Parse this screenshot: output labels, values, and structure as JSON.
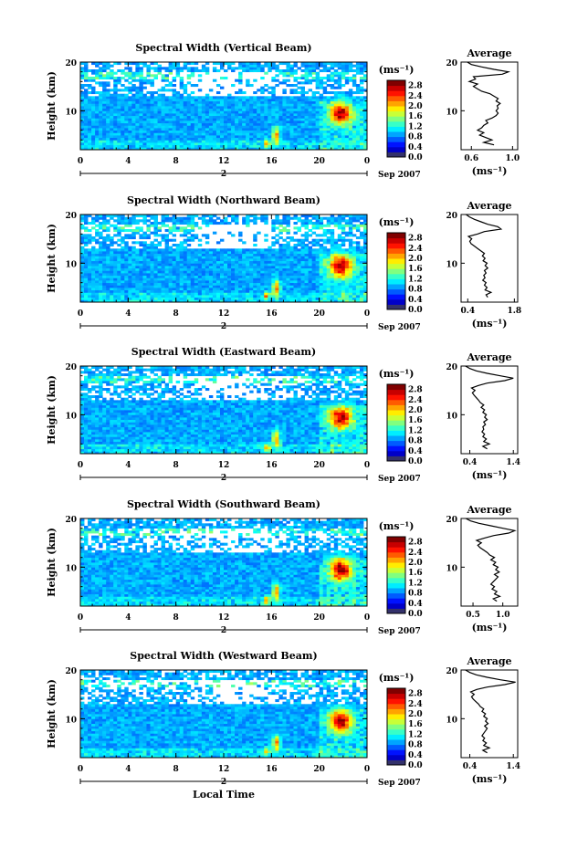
{
  "chart_data": [
    {
      "type": "heatmap",
      "title": "Spectral Width (Vertical Beam)",
      "ylabel": "Height (km)",
      "xlabel": "",
      "x_ticks": [
        "0",
        "4",
        "8",
        "12",
        "16",
        "20",
        "0"
      ],
      "y_ticks": [
        "10",
        "20"
      ],
      "xlim": [
        0,
        24
      ],
      "ylim": [
        2,
        20
      ],
      "day_marker": "2",
      "date_label": "Sep 2007",
      "colorbar": {
        "unit": "(ms⁻¹)",
        "ticks": [
          "2.8",
          "2.4",
          "2.0",
          "1.6",
          "1.2",
          "0.8",
          "0.4",
          "0.0"
        ],
        "range": [
          0,
          3
        ]
      },
      "profile": {
        "title": "Average",
        "xlabel": "(ms⁻¹)",
        "x_ticks": [
          "0.6",
          "1.0"
        ],
        "xlim": [
          0.5,
          1.05
        ],
        "y_ticks": [
          "10",
          "20"
        ],
        "points": [
          [
            0.82,
            3
          ],
          [
            0.72,
            3.5
          ],
          [
            0.8,
            4
          ],
          [
            0.74,
            4.5
          ],
          [
            0.68,
            5
          ],
          [
            0.72,
            5.5
          ],
          [
            0.66,
            6
          ],
          [
            0.7,
            6.5
          ],
          [
            0.72,
            7
          ],
          [
            0.76,
            7.5
          ],
          [
            0.74,
            8
          ],
          [
            0.8,
            8.5
          ],
          [
            0.84,
            9
          ],
          [
            0.86,
            9.5
          ],
          [
            0.84,
            10
          ],
          [
            0.86,
            10.5
          ],
          [
            0.85,
            11
          ],
          [
            0.88,
            11.5
          ],
          [
            0.84,
            12
          ],
          [
            0.86,
            12.5
          ],
          [
            0.82,
            13
          ],
          [
            0.78,
            13.5
          ],
          [
            0.7,
            14
          ],
          [
            0.66,
            14.5
          ],
          [
            0.62,
            15
          ],
          [
            0.66,
            15.5
          ],
          [
            0.58,
            16
          ],
          [
            0.64,
            16.5
          ],
          [
            0.62,
            17
          ],
          [
            0.9,
            17.5
          ],
          [
            0.96,
            18
          ],
          [
            0.82,
            18.5
          ],
          [
            0.7,
            19
          ],
          [
            0.6,
            19.5
          ],
          [
            0.56,
            20
          ]
        ]
      }
    },
    {
      "type": "heatmap",
      "title": "Spectral Width (Northward Beam)",
      "ylabel": "Height (km)",
      "xlabel": "",
      "x_ticks": [
        "0",
        "4",
        "8",
        "12",
        "16",
        "20",
        "0"
      ],
      "y_ticks": [
        "10",
        "20"
      ],
      "xlim": [
        0,
        24
      ],
      "ylim": [
        2,
        20
      ],
      "day_marker": "2",
      "date_label": "Sep 2007",
      "colorbar": {
        "unit": "(ms⁻¹)",
        "ticks": [
          "2.8",
          "2.4",
          "2.0",
          "1.6",
          "1.2",
          "0.8",
          "0.4",
          "0.0"
        ],
        "range": [
          0,
          3
        ]
      },
      "profile": {
        "title": "Average",
        "xlabel": "(ms⁻¹)",
        "x_ticks": [
          "0.4",
          "1.8"
        ],
        "xlim": [
          0.2,
          1.9
        ],
        "y_ticks": [
          "10",
          "20"
        ],
        "points": [
          [
            1.0,
            3
          ],
          [
            0.95,
            3.5
          ],
          [
            1.1,
            4
          ],
          [
            0.92,
            4.5
          ],
          [
            0.98,
            5
          ],
          [
            0.9,
            5.5
          ],
          [
            0.95,
            6
          ],
          [
            0.85,
            6.5
          ],
          [
            0.92,
            7
          ],
          [
            0.88,
            7.5
          ],
          [
            0.95,
            8
          ],
          [
            0.9,
            8.5
          ],
          [
            1.0,
            9
          ],
          [
            0.92,
            9.5
          ],
          [
            0.98,
            10
          ],
          [
            0.86,
            10.5
          ],
          [
            0.92,
            11
          ],
          [
            0.84,
            11.5
          ],
          [
            0.9,
            12
          ],
          [
            0.8,
            12.5
          ],
          [
            0.7,
            13
          ],
          [
            0.6,
            13.5
          ],
          [
            0.5,
            14
          ],
          [
            0.46,
            14.5
          ],
          [
            0.52,
            15
          ],
          [
            0.42,
            15.5
          ],
          [
            0.7,
            16
          ],
          [
            0.9,
            16.5
          ],
          [
            1.4,
            17
          ],
          [
            1.3,
            17.5
          ],
          [
            1.0,
            18
          ],
          [
            0.8,
            18.5
          ],
          [
            0.6,
            19
          ],
          [
            0.45,
            19.5
          ],
          [
            0.35,
            20
          ]
        ]
      }
    },
    {
      "type": "heatmap",
      "title": "Spectral Width (Eastward Beam)",
      "ylabel": "Height (km)",
      "xlabel": "",
      "x_ticks": [
        "0",
        "4",
        "8",
        "12",
        "16",
        "20",
        "0"
      ],
      "y_ticks": [
        "10",
        "20"
      ],
      "xlim": [
        0,
        24
      ],
      "ylim": [
        2,
        20
      ],
      "day_marker": "2",
      "date_label": "Sep 2007",
      "colorbar": {
        "unit": "(ms⁻¹)",
        "ticks": [
          "2.8",
          "2.4",
          "2.0",
          "1.6",
          "1.2",
          "0.8",
          "0.4",
          "0.0"
        ],
        "range": [
          0,
          3
        ]
      },
      "profile": {
        "title": "Average",
        "xlabel": "(ms⁻¹)",
        "x_ticks": [
          "0.4",
          "1.4"
        ],
        "xlim": [
          0.2,
          1.5
        ],
        "y_ticks": [
          "10",
          "20"
        ],
        "points": [
          [
            0.8,
            3
          ],
          [
            0.7,
            3.5
          ],
          [
            0.85,
            4
          ],
          [
            0.72,
            4.5
          ],
          [
            0.78,
            5
          ],
          [
            0.7,
            5.5
          ],
          [
            0.74,
            6
          ],
          [
            0.68,
            6.5
          ],
          [
            0.72,
            7
          ],
          [
            0.7,
            7.5
          ],
          [
            0.76,
            8
          ],
          [
            0.72,
            8.5
          ],
          [
            0.8,
            9
          ],
          [
            0.74,
            9.5
          ],
          [
            0.78,
            10
          ],
          [
            0.7,
            10.5
          ],
          [
            0.74,
            11
          ],
          [
            0.66,
            11.5
          ],
          [
            0.72,
            12
          ],
          [
            0.64,
            12.5
          ],
          [
            0.6,
            13
          ],
          [
            0.55,
            13.5
          ],
          [
            0.5,
            14
          ],
          [
            0.46,
            14.5
          ],
          [
            0.52,
            15
          ],
          [
            0.44,
            15.5
          ],
          [
            0.6,
            16
          ],
          [
            0.8,
            16.5
          ],
          [
            1.2,
            17
          ],
          [
            1.4,
            17.5
          ],
          [
            1.1,
            18
          ],
          [
            0.8,
            18.5
          ],
          [
            0.55,
            19
          ],
          [
            0.4,
            19.5
          ],
          [
            0.3,
            20
          ]
        ]
      }
    },
    {
      "type": "heatmap",
      "title": "Spectral Width (Southward Beam)",
      "ylabel": "Height (km)",
      "xlabel": "",
      "x_ticks": [
        "0",
        "4",
        "8",
        "12",
        "16",
        "20",
        "0"
      ],
      "y_ticks": [
        "10",
        "20"
      ],
      "xlim": [
        0,
        24
      ],
      "ylim": [
        2,
        20
      ],
      "day_marker": "2",
      "date_label": "Sep 2007",
      "colorbar": {
        "unit": "(ms⁻¹)",
        "ticks": [
          "2.8",
          "2.4",
          "2.0",
          "1.6",
          "1.2",
          "0.8",
          "0.4",
          "0.0"
        ],
        "range": [
          0,
          3
        ]
      },
      "profile": {
        "title": "Average",
        "xlabel": "(ms⁻¹)",
        "x_ticks": [
          "0.5",
          "1.0"
        ],
        "xlim": [
          0.3,
          1.25
        ],
        "y_ticks": [
          "10",
          "20"
        ],
        "points": [
          [
            0.9,
            3
          ],
          [
            0.84,
            3.5
          ],
          [
            0.95,
            4
          ],
          [
            0.86,
            4.5
          ],
          [
            0.9,
            5
          ],
          [
            0.82,
            5.5
          ],
          [
            0.86,
            6
          ],
          [
            0.8,
            6.5
          ],
          [
            0.84,
            7
          ],
          [
            0.88,
            7.5
          ],
          [
            0.92,
            8
          ],
          [
            0.86,
            8.5
          ],
          [
            0.94,
            9
          ],
          [
            0.88,
            9.5
          ],
          [
            0.92,
            10
          ],
          [
            0.84,
            10.5
          ],
          [
            0.88,
            11
          ],
          [
            0.8,
            11.5
          ],
          [
            0.86,
            12
          ],
          [
            0.78,
            12.5
          ],
          [
            0.74,
            13
          ],
          [
            0.68,
            13.5
          ],
          [
            0.62,
            14
          ],
          [
            0.58,
            14.5
          ],
          [
            0.64,
            15
          ],
          [
            0.56,
            15.5
          ],
          [
            0.7,
            16
          ],
          [
            0.85,
            16.5
          ],
          [
            1.1,
            17
          ],
          [
            1.2,
            17.5
          ],
          [
            1.0,
            18
          ],
          [
            0.8,
            18.5
          ],
          [
            0.6,
            19
          ],
          [
            0.46,
            19.5
          ],
          [
            0.38,
            20
          ]
        ]
      }
    },
    {
      "type": "heatmap",
      "title": "Spectral Width (Westward Beam)",
      "ylabel": "Height (km)",
      "xlabel": "Local Time",
      "x_ticks": [
        "0",
        "4",
        "8",
        "12",
        "16",
        "20",
        "0"
      ],
      "y_ticks": [
        "10",
        "20"
      ],
      "xlim": [
        0,
        24
      ],
      "ylim": [
        2,
        20
      ],
      "day_marker": "2",
      "date_label": "Sep 2007",
      "colorbar": {
        "unit": "(ms⁻¹)",
        "ticks": [
          "2.8",
          "2.4",
          "2.0",
          "1.6",
          "1.2",
          "0.8",
          "0.4",
          "0.0"
        ],
        "range": [
          0,
          3
        ]
      },
      "profile": {
        "title": "Average",
        "xlabel": "(ms⁻¹)",
        "x_ticks": [
          "0.4",
          "1.4"
        ],
        "xlim": [
          0.2,
          1.5
        ],
        "y_ticks": [
          "10",
          "20"
        ],
        "points": [
          [
            0.8,
            3
          ],
          [
            0.7,
            3.5
          ],
          [
            0.85,
            4
          ],
          [
            0.72,
            4.5
          ],
          [
            0.78,
            5
          ],
          [
            0.7,
            5.5
          ],
          [
            0.74,
            6
          ],
          [
            0.68,
            6.5
          ],
          [
            0.72,
            7
          ],
          [
            0.76,
            7.5
          ],
          [
            0.8,
            8
          ],
          [
            0.74,
            8.5
          ],
          [
            0.82,
            9
          ],
          [
            0.76,
            9.5
          ],
          [
            0.8,
            10
          ],
          [
            0.72,
            10.5
          ],
          [
            0.76,
            11
          ],
          [
            0.68,
            11.5
          ],
          [
            0.72,
            12
          ],
          [
            0.64,
            12.5
          ],
          [
            0.6,
            13
          ],
          [
            0.54,
            13.5
          ],
          [
            0.48,
            14
          ],
          [
            0.44,
            14.5
          ],
          [
            0.5,
            15
          ],
          [
            0.42,
            15.5
          ],
          [
            0.56,
            16
          ],
          [
            0.8,
            16.5
          ],
          [
            1.2,
            17
          ],
          [
            1.45,
            17.5
          ],
          [
            1.1,
            18
          ],
          [
            0.8,
            18.5
          ],
          [
            0.55,
            19
          ],
          [
            0.4,
            19.5
          ],
          [
            0.3,
            20
          ]
        ]
      }
    }
  ]
}
